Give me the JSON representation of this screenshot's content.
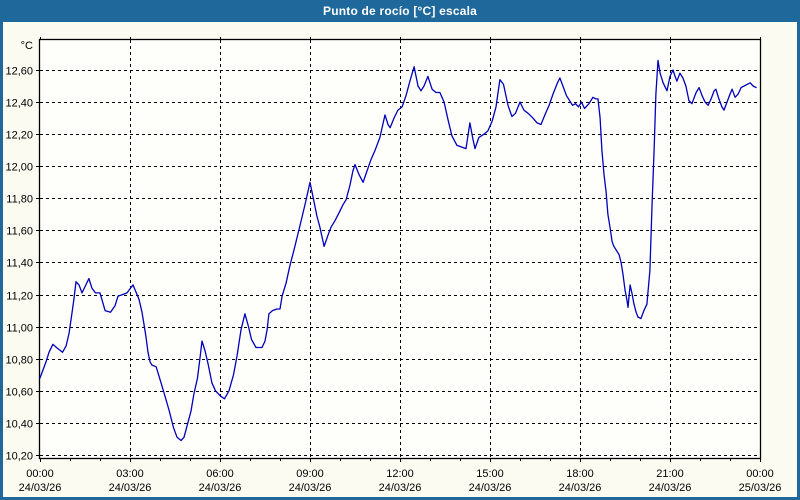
{
  "window": {
    "title": "Punto de rocío [°C] escala"
  },
  "colors": {
    "titlebar_bg": "#1e689b",
    "title_text": "#ffffff",
    "window_border": "#1e689b",
    "background": "#fbfbf2",
    "plot_bg": "#fefefa",
    "grid": "#000000",
    "axis": "#000000",
    "label_text": "#000000",
    "line": "#0000bd"
  },
  "chart_data": {
    "type": "line",
    "title": "Punto de rocío [°C] escala",
    "ylabel": "°C",
    "grid": "dashed",
    "legend": "none",
    "x_axis": {
      "range_hours": [
        0,
        24
      ],
      "tick_hours": [
        0,
        3,
        6,
        9,
        12,
        15,
        18,
        21,
        24
      ],
      "minor_tick_every_hours": 1,
      "ticks": [
        {
          "time": "00:00",
          "date": "24/03/26"
        },
        {
          "time": "03:00",
          "date": "24/03/26"
        },
        {
          "time": "06:00",
          "date": "24/03/26"
        },
        {
          "time": "09:00",
          "date": "24/03/26"
        },
        {
          "time": "12:00",
          "date": "24/03/26"
        },
        {
          "time": "15:00",
          "date": "24/03/26"
        },
        {
          "time": "18:00",
          "date": "24/03/26"
        },
        {
          "time": "21:00",
          "date": "24/03/26"
        },
        {
          "time": "00:00",
          "date": "25/03/26"
        }
      ]
    },
    "y_axis": {
      "unit": "°C",
      "range": [
        10.181,
        12.787
      ],
      "ticks": [
        {
          "value": 10.2,
          "label": "10,20"
        },
        {
          "value": 10.4,
          "label": "10,40"
        },
        {
          "value": 10.6,
          "label": "10,60"
        },
        {
          "value": 10.8,
          "label": "10,80"
        },
        {
          "value": 11.0,
          "label": "11,00"
        },
        {
          "value": 11.2,
          "label": "11,20"
        },
        {
          "value": 11.4,
          "label": "11,40"
        },
        {
          "value": 11.6,
          "label": "11,60"
        },
        {
          "value": 11.8,
          "label": "11,80"
        },
        {
          "value": 12.0,
          "label": "12,00"
        },
        {
          "value": 12.2,
          "label": "12,20"
        },
        {
          "value": 12.4,
          "label": "12,40"
        },
        {
          "value": 12.6,
          "label": "12,60"
        }
      ]
    },
    "series": [
      {
        "name": "Punto de rocío",
        "color": "#0000bd",
        "points": [
          [
            0,
            10.68
          ],
          [
            0.1,
            10.73
          ],
          [
            0.2,
            10.78
          ],
          [
            0.3,
            10.84
          ],
          [
            0.43,
            10.89
          ],
          [
            0.55,
            10.87
          ],
          [
            0.75,
            10.84
          ],
          [
            0.87,
            10.88
          ],
          [
            0.97,
            10.96
          ],
          [
            1.07,
            11.09
          ],
          [
            1.13,
            11.17
          ],
          [
            1.2,
            11.28
          ],
          [
            1.3,
            11.26
          ],
          [
            1.4,
            11.21
          ],
          [
            1.53,
            11.26
          ],
          [
            1.63,
            11.3
          ],
          [
            1.73,
            11.24
          ],
          [
            1.85,
            11.21
          ],
          [
            2,
            11.21
          ],
          [
            2.17,
            11.1
          ],
          [
            2.35,
            11.09
          ],
          [
            2.5,
            11.13
          ],
          [
            2.6,
            11.19
          ],
          [
            2.75,
            11.2
          ],
          [
            2.9,
            11.21
          ],
          [
            3.1,
            11.26
          ],
          [
            3.3,
            11.17
          ],
          [
            3.4,
            11.09
          ],
          [
            3.47,
            11.01
          ],
          [
            3.53,
            10.94
          ],
          [
            3.6,
            10.84
          ],
          [
            3.67,
            10.78
          ],
          [
            3.73,
            10.76
          ],
          [
            3.87,
            10.75
          ],
          [
            3.97,
            10.69
          ],
          [
            4.13,
            10.59
          ],
          [
            4.3,
            10.48
          ],
          [
            4.45,
            10.37
          ],
          [
            4.57,
            10.31
          ],
          [
            4.7,
            10.29
          ],
          [
            4.8,
            10.31
          ],
          [
            4.9,
            10.38
          ],
          [
            5.03,
            10.47
          ],
          [
            5.13,
            10.58
          ],
          [
            5.25,
            10.68
          ],
          [
            5.33,
            10.8
          ],
          [
            5.4,
            10.91
          ],
          [
            5.5,
            10.85
          ],
          [
            5.6,
            10.77
          ],
          [
            5.73,
            10.65
          ],
          [
            5.85,
            10.6
          ],
          [
            6,
            10.57
          ],
          [
            6.15,
            10.55
          ],
          [
            6.3,
            10.6
          ],
          [
            6.45,
            10.7
          ],
          [
            6.57,
            10.82
          ],
          [
            6.7,
            10.98
          ],
          [
            6.83,
            11.08
          ],
          [
            6.95,
            11
          ],
          [
            7.05,
            10.92
          ],
          [
            7.2,
            10.87
          ],
          [
            7.4,
            10.87
          ],
          [
            7.5,
            10.91
          ],
          [
            7.57,
            10.98
          ],
          [
            7.63,
            11.08
          ],
          [
            7.75,
            11.1
          ],
          [
            7.9,
            11.11
          ],
          [
            8,
            11.11
          ],
          [
            8.07,
            11.19
          ],
          [
            8.2,
            11.27
          ],
          [
            8.33,
            11.38
          ],
          [
            8.47,
            11.48
          ],
          [
            8.6,
            11.58
          ],
          [
            8.73,
            11.68
          ],
          [
            8.87,
            11.79
          ],
          [
            9,
            11.9
          ],
          [
            9.1,
            11.81
          ],
          [
            9.23,
            11.69
          ],
          [
            9.33,
            11.62
          ],
          [
            9.47,
            11.5
          ],
          [
            9.6,
            11.57
          ],
          [
            9.7,
            11.62
          ],
          [
            9.83,
            11.66
          ],
          [
            9.97,
            11.71
          ],
          [
            10.1,
            11.76
          ],
          [
            10.2,
            11.79
          ],
          [
            10.33,
            11.88
          ],
          [
            10.43,
            11.97
          ],
          [
            10.5,
            12.01
          ],
          [
            10.63,
            11.95
          ],
          [
            10.77,
            11.9
          ],
          [
            10.9,
            11.97
          ],
          [
            11.03,
            12.04
          ],
          [
            11.17,
            12.1
          ],
          [
            11.33,
            12.18
          ],
          [
            11.5,
            12.32
          ],
          [
            11.6,
            12.26
          ],
          [
            11.67,
            12.24
          ],
          [
            11.8,
            12.3
          ],
          [
            11.93,
            12.35
          ],
          [
            12.07,
            12.37
          ],
          [
            12.2,
            12.44
          ],
          [
            12.33,
            12.53
          ],
          [
            12.47,
            12.62
          ],
          [
            12.6,
            12.5
          ],
          [
            12.7,
            12.47
          ],
          [
            12.8,
            12.5
          ],
          [
            12.93,
            12.56
          ],
          [
            13.07,
            12.48
          ],
          [
            13.2,
            12.46
          ],
          [
            13.33,
            12.46
          ],
          [
            13.47,
            12.4
          ],
          [
            13.6,
            12.29
          ],
          [
            13.73,
            12.19
          ],
          [
            13.9,
            12.13
          ],
          [
            14.05,
            12.12
          ],
          [
            14.2,
            12.11
          ],
          [
            14.33,
            12.27
          ],
          [
            14.43,
            12.17
          ],
          [
            14.5,
            12.11
          ],
          [
            14.63,
            12.18
          ],
          [
            14.8,
            12.2
          ],
          [
            14.93,
            12.22
          ],
          [
            15.07,
            12.28
          ],
          [
            15.2,
            12.37
          ],
          [
            15.33,
            12.54
          ],
          [
            15.45,
            12.51
          ],
          [
            15.6,
            12.38
          ],
          [
            15.73,
            12.31
          ],
          [
            15.85,
            12.33
          ],
          [
            16,
            12.4
          ],
          [
            16.13,
            12.35
          ],
          [
            16.27,
            12.33
          ],
          [
            16.43,
            12.3
          ],
          [
            16.57,
            12.27
          ],
          [
            16.7,
            12.26
          ],
          [
            16.83,
            12.32
          ],
          [
            16.97,
            12.38
          ],
          [
            17.1,
            12.45
          ],
          [
            17.25,
            12.52
          ],
          [
            17.33,
            12.55
          ],
          [
            17.45,
            12.49
          ],
          [
            17.55,
            12.44
          ],
          [
            17.65,
            12.41
          ],
          [
            17.75,
            12.38
          ],
          [
            17.85,
            12.39
          ],
          [
            17.95,
            12.37
          ],
          [
            18.05,
            12.4
          ],
          [
            18.15,
            12.36
          ],
          [
            18.3,
            12.39
          ],
          [
            18.43,
            12.43
          ],
          [
            18.53,
            12.42
          ],
          [
            18.6,
            12.42
          ],
          [
            18.67,
            12.3
          ],
          [
            18.73,
            12.1
          ],
          [
            18.8,
            11.95
          ],
          [
            18.87,
            11.84
          ],
          [
            18.93,
            11.7
          ],
          [
            19,
            11.62
          ],
          [
            19.07,
            11.53
          ],
          [
            19.13,
            11.5
          ],
          [
            19.23,
            11.47
          ],
          [
            19.3,
            11.45
          ],
          [
            19.37,
            11.4
          ],
          [
            19.43,
            11.33
          ],
          [
            19.5,
            11.23
          ],
          [
            19.57,
            11.16
          ],
          [
            19.6,
            11.12
          ],
          [
            19.67,
            11.26
          ],
          [
            19.73,
            11.21
          ],
          [
            19.8,
            11.14
          ],
          [
            19.87,
            11.09
          ],
          [
            19.93,
            11.06
          ],
          [
            20.03,
            11.05
          ],
          [
            20.13,
            11.1
          ],
          [
            20.23,
            11.14
          ],
          [
            20.33,
            11.35
          ],
          [
            20.4,
            11.75
          ],
          [
            20.47,
            12.1
          ],
          [
            20.53,
            12.45
          ],
          [
            20.6,
            12.66
          ],
          [
            20.67,
            12.58
          ],
          [
            20.77,
            12.52
          ],
          [
            20.9,
            12.47
          ],
          [
            21,
            12.56
          ],
          [
            21.1,
            12.6
          ],
          [
            21.17,
            12.56
          ],
          [
            21.23,
            12.53
          ],
          [
            21.33,
            12.58
          ],
          [
            21.43,
            12.55
          ],
          [
            21.53,
            12.5
          ],
          [
            21.63,
            12.41
          ],
          [
            21.73,
            12.39
          ],
          [
            21.87,
            12.46
          ],
          [
            21.97,
            12.49
          ],
          [
            22.07,
            12.44
          ],
          [
            22.17,
            12.4
          ],
          [
            22.27,
            12.38
          ],
          [
            22.37,
            12.42
          ],
          [
            22.47,
            12.47
          ],
          [
            22.53,
            12.48
          ],
          [
            22.63,
            12.42
          ],
          [
            22.73,
            12.37
          ],
          [
            22.8,
            12.35
          ],
          [
            22.9,
            12.4
          ],
          [
            23,
            12.45
          ],
          [
            23.07,
            12.48
          ],
          [
            23.17,
            12.43
          ],
          [
            23.27,
            12.45
          ],
          [
            23.37,
            12.49
          ],
          [
            23.47,
            12.5
          ],
          [
            23.57,
            12.51
          ],
          [
            23.67,
            12.52
          ],
          [
            23.77,
            12.5
          ],
          [
            23.87,
            12.49
          ]
        ]
      }
    ]
  }
}
